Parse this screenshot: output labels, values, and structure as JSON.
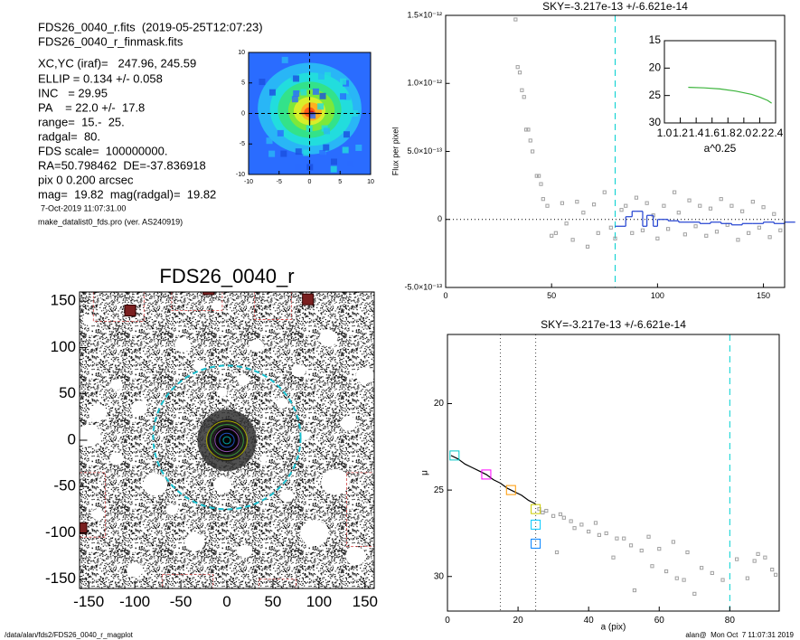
{
  "header": {
    "lines": [
      "FDS26_0040_r.fits  (2019-05-25T12:07:23)",
      "FDS26_0040_r_finmask.fits",
      "XC,YC (iraf)=   247.96, 245.59",
      "ELLIP = 0.134 +/- 0.058",
      "INC   = 29.95",
      "PA    = 22.0 +/-  17.8",
      "range=  15.-  25.",
      "radgal=  80.",
      "FDS scale=  100000000.",
      "RA=50.798462  DE=-37.836918",
      "pix 0 0.200 arcsec",
      "mag=  19.82  mag(radgal)=  19.82"
    ],
    "date": "7-Oct-2019 11:07:31.00",
    "program": "make_datalist0_fds.pro (ver. AS240919)"
  },
  "footer": {
    "path": "/data/alan/fds2/FDS26_0040_r_magplot",
    "stamp": "alan@  Mon Oct  7 11:07:31 2019"
  },
  "chart_data": [
    {
      "type": "image",
      "xlim": [
        -10,
        10
      ],
      "ylim": [
        -10,
        10
      ],
      "xticks": [
        -10,
        -5,
        0,
        5,
        10
      ],
      "yticks": [
        -10,
        -5,
        0,
        5,
        10
      ]
    },
    {
      "type": "image",
      "title": "FDS26_0040_r",
      "xlim": [
        -160,
        160
      ],
      "ylim": [
        -160,
        160
      ],
      "xticks": [
        -150,
        -100,
        -50,
        0,
        50,
        100,
        150
      ],
      "yticks": [
        -150,
        -100,
        -50,
        0,
        50,
        100,
        150
      ]
    },
    {
      "type": "scatter",
      "title": "SKY=-3.217e-13 +/-6.621e-14",
      "ylabel": "Flux per pixel",
      "xlim": [
        0,
        160
      ],
      "ylim": [
        -5e-13,
        1.5e-12
      ],
      "xticks": [
        0,
        50,
        100,
        150
      ],
      "yticks": [
        {
          "value": -5e-13,
          "label": "-5.0×10⁻¹³"
        },
        0,
        {
          "value": 5e-13,
          "label": "5.0×10⁻¹³"
        },
        {
          "value": 1e-12,
          "label": "1.0×10⁻¹²"
        },
        {
          "value": 1.5e-12,
          "label": "1.5×10⁻¹²"
        }
      ],
      "color": "#a0a0a0",
      "x": [
        33,
        34,
        35,
        36,
        37,
        38,
        39,
        40,
        41,
        43,
        44,
        45,
        46,
        48,
        50,
        52,
        55,
        57,
        60,
        62,
        65,
        67,
        70,
        72,
        75,
        78,
        80,
        83,
        85,
        88,
        90,
        93,
        95,
        98,
        100,
        103,
        105,
        108,
        110,
        113,
        115,
        118,
        120,
        123,
        125,
        128,
        130,
        133,
        135,
        138,
        140,
        143,
        145,
        148,
        150,
        153,
        155,
        158
      ],
      "values": [
        1.47e-12,
        1.12e-12,
        1.08e-12,
        9.5e-13,
        9e-13,
        6.6e-13,
        6.6e-13,
        5.8e-13,
        5e-13,
        3.2e-13,
        3.2e-13,
        2.6e-13,
        1.5e-13,
        1e-13,
        -1.2e-13,
        -1e-13,
        1.2e-13,
        -3e-14,
        -1.5e-13,
        1.3e-13,
        5e-14,
        -2e-13,
        1.1e-13,
        -1e-13,
        2e-13,
        -6e-14,
        -1.4e-13,
        7e-14,
        1e-13,
        -1e-13,
        1.6e-13,
        -8e-14,
        1.2e-13,
        3e-14,
        -1.4e-13,
        1e-13,
        -7e-14,
        2e-13,
        5e-14,
        -1.1e-13,
        1.4e-13,
        -5e-14,
        1e-13,
        -1.2e-13,
        8e-14,
        -9e-14,
        1.5e-13,
        -4e-14,
        1e-13,
        -1.5e-13,
        6e-14,
        -1e-13,
        1.3e-13,
        -6e-14,
        9e-14,
        -1.3e-13,
        4e-14,
        -8e-14
      ],
      "steps": {
        "color": "#1f3fd0",
        "x": [
          80,
          85,
          88,
          90,
          93,
          95,
          98,
          100,
          105,
          110,
          115,
          120,
          125,
          130,
          135,
          140,
          145,
          150,
          155,
          160
        ],
        "values": [
          -5e-14,
          2e-14,
          6e-14,
          6e-14,
          -5e-14,
          3e-14,
          -5e-14,
          0,
          -1e-14,
          -2e-14,
          -2e-14,
          -3e-14,
          -2e-14,
          -3e-14,
          -4e-14,
          -3e-14,
          -3e-14,
          -2e-14,
          -3e-14,
          -2e-14
        ]
      },
      "vlines": [
        {
          "value": 80,
          "color": "#00d0d0",
          "dash": "7,5"
        }
      ],
      "hlines": [
        {
          "value": 0,
          "color": "#000000",
          "dash": "1,3"
        }
      ]
    },
    {
      "type": "line",
      "xlabel": "a^0.25",
      "xlim": [
        1.0,
        2.4
      ],
      "ylim": [
        30,
        15
      ],
      "xticks": [
        {
          "value": 1,
          "label": "1.0"
        },
        1.2,
        1.4,
        1.6,
        1.8,
        {
          "value": 2,
          "label": "2.0"
        },
        2.2,
        2.4
      ],
      "yticks": [
        15,
        20,
        25,
        30
      ],
      "color": "#3cb43c",
      "x": [
        1.3,
        1.5,
        1.7,
        1.9,
        2.1,
        2.2,
        2.3,
        2.35
      ],
      "values": [
        23.5,
        23.6,
        23.8,
        24.2,
        24.8,
        25.3,
        25.9,
        26.4
      ]
    },
    {
      "type": "scatter",
      "title": "SKY=-3.217e-13 +/-6.621e-14",
      "xlabel": "a (pix)",
      "ylabel": "μ",
      "xlim": [
        0,
        94
      ],
      "ylim": [
        32,
        16
      ],
      "xticks": [
        0,
        20,
        40,
        60,
        80
      ],
      "yticks": [
        20,
        25,
        30
      ],
      "color": "#a0a0a0",
      "x": [
        26,
        27,
        28,
        30,
        31,
        32,
        33,
        35,
        36,
        38,
        40,
        42,
        43,
        45,
        47,
        48,
        50,
        52,
        53,
        55,
        57,
        58,
        60,
        62,
        64,
        65,
        67,
        68,
        70,
        72,
        75,
        78,
        82,
        85,
        87,
        88,
        90,
        92,
        93
      ],
      "values": [
        26.1,
        26.3,
        26.2,
        26.5,
        28.6,
        26.4,
        26.6,
        26.8,
        27.2,
        27.0,
        27.4,
        26.9,
        27.6,
        27.5,
        28.9,
        27.8,
        27.8,
        28.2,
        30.8,
        28.5,
        27.7,
        29.4,
        28.4,
        29.7,
        28.0,
        30.1,
        30.2,
        28.6,
        31.0,
        29.5,
        29.8,
        30.2,
        29.0,
        30.1,
        29.1,
        28.7,
        28.9,
        29.6,
        29.9
      ],
      "curve": {
        "color": "#000000",
        "x": [
          1,
          3,
          5,
          7,
          9,
          11,
          13,
          15,
          17,
          19,
          21,
          23,
          24,
          25
        ],
        "values": [
          23.0,
          23.2,
          23.5,
          23.7,
          23.9,
          24.1,
          24.4,
          24.6,
          24.9,
          25.1,
          25.3,
          25.6,
          25.7,
          25.8
        ]
      },
      "markers": {
        "x": [
          2,
          11,
          18,
          25,
          25,
          25
        ],
        "values": [
          23.0,
          24.1,
          25.0,
          26.1,
          27.0,
          28.1
        ],
        "colors": [
          "#00c8c8",
          "#ff00ff",
          "#ff9900",
          "#cccc00",
          "#00c8ff",
          "#0080ff"
        ]
      },
      "vlines": [
        {
          "value": 15,
          "color": "#444444",
          "dash": "1,3"
        },
        {
          "value": 25,
          "color": "#444444",
          "dash": "1,3"
        },
        {
          "value": 80,
          "color": "#00d0d0",
          "dash": "7,5"
        }
      ]
    }
  ]
}
